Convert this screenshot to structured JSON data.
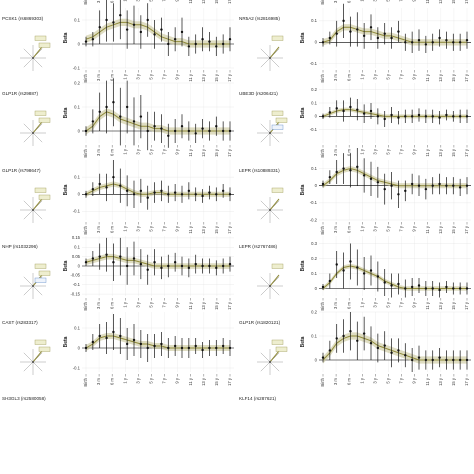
{
  "colors": {
    "band": "#c9c79a",
    "trend": "#8f8a3a",
    "point": "#111111",
    "zero": "#000000",
    "grid": "#dddddd",
    "compass": "#999999",
    "tag_fill": "#eeeecf",
    "tag_edge": "#9c9a55",
    "tag_blue": "#5a87c7"
  },
  "x_ticks": [
    "Birth",
    "3 m",
    "6 m",
    "1 y",
    "3 y",
    "5 y",
    "7 y",
    "9 y",
    "11 y",
    "13 y",
    "15 y",
    "17 y"
  ],
  "y_label": "Beta",
  "chart_data": [
    {
      "type": "line",
      "title": "PCSK1 (rs6869303)",
      "x": [
        0,
        1,
        2,
        3,
        4,
        5,
        6,
        7,
        8,
        9,
        10,
        11,
        12,
        13,
        14,
        15,
        16,
        17,
        18,
        19,
        20,
        21
      ],
      "trend": [
        0.02,
        0.03,
        0.05,
        0.07,
        0.08,
        0.09,
        0.09,
        0.08,
        0.08,
        0.07,
        0.05,
        0.03,
        0.02,
        0.01,
        0.01,
        0.0,
        0.0,
        0.0,
        0.0,
        0.0,
        0.0,
        0.0
      ],
      "points": [
        0.01,
        0.02,
        0.07,
        0.1,
        0.09,
        0.12,
        0.06,
        0.08,
        0.05,
        0.1,
        0.04,
        0.06,
        0.0,
        0.02,
        0.05,
        -0.01,
        0.0,
        0.02,
        0.01,
        -0.01,
        0.0,
        0.02
      ],
      "err": [
        0.02,
        0.03,
        0.07,
        0.09,
        0.08,
        0.1,
        0.08,
        0.08,
        0.07,
        0.07,
        0.06,
        0.05,
        0.05,
        0.05,
        0.06,
        0.04,
        0.04,
        0.05,
        0.04,
        0.04,
        0.04,
        0.05
      ],
      "ylim": [
        -0.1,
        0.15
      ],
      "yticks": [
        0.1,
        0,
        -0.1
      ],
      "ytick_labels": [
        "0.1",
        "0",
        "-0.1"
      ],
      "tags": 2
    },
    {
      "type": "line",
      "title": "NR5A2 (rs2816985)",
      "x": [
        0,
        1,
        2,
        3,
        4,
        5,
        6,
        7,
        8,
        9,
        10,
        11,
        12,
        13,
        14,
        15,
        16,
        17,
        18,
        19,
        20,
        21
      ],
      "trend": [
        0.0,
        0.01,
        0.05,
        0.07,
        0.07,
        0.06,
        0.05,
        0.05,
        0.04,
        0.03,
        0.03,
        0.02,
        0.01,
        0.0,
        0.0,
        0.0,
        0.0,
        0.0,
        0.0,
        0.0,
        0.0,
        0.0
      ],
      "points": [
        0.0,
        0.02,
        0.04,
        0.1,
        0.05,
        0.06,
        0.03,
        0.07,
        0.02,
        0.04,
        0.02,
        0.05,
        0.0,
        0.0,
        0.01,
        -0.01,
        0.0,
        0.02,
        0.01,
        0.0,
        0.0,
        0.01
      ],
      "err": [
        0.02,
        0.03,
        0.06,
        0.08,
        0.07,
        0.08,
        0.06,
        0.06,
        0.05,
        0.05,
        0.05,
        0.05,
        0.04,
        0.05,
        0.05,
        0.04,
        0.04,
        0.04,
        0.04,
        0.04,
        0.04,
        0.04
      ],
      "ylim": [
        -0.12,
        0.16
      ],
      "yticks": [
        0.1,
        0,
        -0.1
      ],
      "ytick_labels": [
        "0.1",
        "0",
        "-0.1"
      ],
      "tags": 1
    },
    {
      "type": "line",
      "title": "GLP1R (rs29887)",
      "x": [
        0,
        1,
        2,
        3,
        4,
        5,
        6,
        7,
        8,
        9,
        10,
        11,
        12,
        13,
        14,
        15,
        16,
        17,
        18,
        19,
        20,
        21
      ],
      "trend": [
        0.0,
        0.02,
        0.06,
        0.08,
        0.07,
        0.05,
        0.04,
        0.03,
        0.02,
        0.02,
        0.01,
        0.01,
        0.0,
        0.0,
        0.0,
        0.0,
        0.0,
        0.0,
        0.0,
        0.0,
        0.0,
        0.0
      ],
      "points": [
        0.0,
        0.04,
        0.08,
        0.1,
        0.12,
        0.06,
        0.1,
        0.04,
        0.06,
        0.0,
        0.02,
        0.01,
        -0.02,
        0.0,
        0.02,
        0.0,
        -0.01,
        0.01,
        0.0,
        0.02,
        0.0,
        0.0
      ],
      "err": [
        0.02,
        0.05,
        0.08,
        0.11,
        0.1,
        0.12,
        0.11,
        0.1,
        0.09,
        0.08,
        0.06,
        0.06,
        0.05,
        0.05,
        0.05,
        0.04,
        0.04,
        0.04,
        0.04,
        0.04,
        0.04,
        0.04
      ],
      "ylim": [
        -0.05,
        0.2
      ],
      "yticks": [
        0.2,
        0.1,
        0
      ],
      "ytick_labels": [
        "0.2",
        "0.1",
        "0"
      ],
      "tags": 2
    },
    {
      "type": "line",
      "title": "UBE3D (rs206421)",
      "x": [
        0,
        1,
        2,
        3,
        4,
        5,
        6,
        7,
        8,
        9,
        10,
        11,
        12,
        13,
        14,
        15,
        16,
        17,
        18,
        19,
        20,
        21
      ],
      "trend": [
        0.0,
        0.02,
        0.04,
        0.05,
        0.05,
        0.04,
        0.03,
        0.02,
        0.01,
        0.0,
        0.0,
        0.0,
        0.0,
        0.0,
        0.0,
        0.0,
        0.0,
        0.0,
        0.0,
        0.0,
        0.0,
        0.0
      ],
      "points": [
        0.0,
        0.03,
        0.06,
        0.04,
        0.07,
        0.05,
        0.02,
        0.04,
        0.0,
        -0.02,
        0.01,
        -0.01,
        0.0,
        0.0,
        0.01,
        0.0,
        0.0,
        -0.01,
        0.01,
        0.0,
        0.0,
        0.0
      ],
      "err": [
        0.02,
        0.04,
        0.06,
        0.08,
        0.07,
        0.08,
        0.07,
        0.06,
        0.06,
        0.06,
        0.06,
        0.05,
        0.05,
        0.05,
        0.05,
        0.05,
        0.05,
        0.05,
        0.04,
        0.04,
        0.05,
        0.05
      ],
      "ylim": [
        -0.2,
        0.25
      ],
      "yticks": [
        0.2,
        0.1,
        0,
        -0.1
      ],
      "ytick_labels": [
        "0.2",
        "0.1",
        "0",
        "-0.1"
      ],
      "tags": 3
    },
    {
      "type": "line",
      "title": "GLP1R (rs798647)",
      "x": [
        0,
        1,
        2,
        3,
        4,
        5,
        6,
        7,
        8,
        9,
        10,
        11,
        12,
        13,
        14,
        15,
        16,
        17,
        18,
        19,
        20,
        21
      ],
      "trend": [
        0.0,
        0.02,
        0.04,
        0.05,
        0.06,
        0.05,
        0.03,
        0.01,
        0.0,
        0.0,
        0.01,
        0.01,
        0.0,
        0.0,
        0.0,
        0.0,
        0.0,
        0.0,
        0.0,
        0.0,
        0.0,
        0.0
      ],
      "points": [
        0.0,
        0.03,
        0.06,
        0.04,
        0.1,
        0.05,
        0.02,
        0.0,
        0.02,
        -0.02,
        0.01,
        0.02,
        0.0,
        0.01,
        0.0,
        0.02,
        0.0,
        -0.01,
        0.01,
        0.0,
        0.02,
        0.0
      ],
      "err": [
        0.02,
        0.04,
        0.06,
        0.08,
        0.1,
        0.1,
        0.09,
        0.08,
        0.07,
        0.07,
        0.06,
        0.06,
        0.05,
        0.05,
        0.05,
        0.05,
        0.04,
        0.04,
        0.04,
        0.04,
        0.04,
        0.04
      ],
      "ylim": [
        -0.15,
        0.2
      ],
      "yticks": [
        0.1,
        0,
        -0.1
      ],
      "ytick_labels": [
        "0.1",
        "0",
        "-0.1"
      ],
      "tags": 2
    },
    {
      "type": "line",
      "title": "LEPR (rs10889331)",
      "x": [
        0,
        1,
        2,
        3,
        4,
        5,
        6,
        7,
        8,
        9,
        10,
        11,
        12,
        13,
        14,
        15,
        16,
        17,
        18,
        19,
        20,
        21
      ],
      "trend": [
        0.0,
        0.03,
        0.07,
        0.09,
        0.1,
        0.09,
        0.07,
        0.05,
        0.03,
        0.02,
        0.01,
        0.0,
        0.0,
        0.0,
        0.0,
        0.0,
        0.0,
        0.0,
        0.0,
        0.0,
        0.0,
        0.0
      ],
      "points": [
        0.01,
        0.05,
        0.08,
        0.1,
        0.09,
        0.11,
        0.06,
        0.04,
        0.02,
        -0.02,
        0.0,
        -0.05,
        -0.03,
        0.01,
        0.0,
        -0.02,
        0.0,
        0.01,
        0.0,
        0.0,
        -0.01,
        0.0
      ],
      "err": [
        0.02,
        0.04,
        0.07,
        0.09,
        0.1,
        0.11,
        0.1,
        0.1,
        0.09,
        0.09,
        0.08,
        0.08,
        0.06,
        0.06,
        0.06,
        0.06,
        0.05,
        0.06,
        0.05,
        0.05,
        0.05,
        0.05
      ],
      "ylim": [
        -0.2,
        0.15
      ],
      "yticks": [
        0.1,
        0,
        -0.1,
        -0.2
      ],
      "ytick_labels": [
        "0.1",
        "0",
        "-0.1",
        "-0.2"
      ],
      "tags": 1
    },
    {
      "type": "line",
      "title": "NHP (rs1032296)",
      "x": [
        0,
        1,
        2,
        3,
        4,
        5,
        6,
        7,
        8,
        9,
        10,
        11,
        12,
        13,
        14,
        15,
        16,
        17,
        18,
        19,
        20,
        21
      ],
      "trend": [
        0.02,
        0.03,
        0.04,
        0.05,
        0.05,
        0.04,
        0.03,
        0.03,
        0.02,
        0.01,
        0.0,
        0.0,
        0.0,
        0.0,
        0.0,
        0.0,
        0.0,
        0.0,
        0.0,
        0.0,
        0.0,
        0.0
      ],
      "points": [
        0.02,
        0.04,
        0.05,
        0.06,
        0.02,
        0.05,
        0.0,
        0.04,
        0.01,
        -0.02,
        0.02,
        -0.01,
        0.0,
        0.02,
        0.0,
        -0.01,
        0.01,
        0.0,
        0.0,
        -0.01,
        0.0,
        0.01
      ],
      "err": [
        0.02,
        0.04,
        0.07,
        0.09,
        0.1,
        0.1,
        0.1,
        0.09,
        0.08,
        0.08,
        0.07,
        0.06,
        0.06,
        0.05,
        0.05,
        0.05,
        0.05,
        0.04,
        0.04,
        0.04,
        0.04,
        0.04
      ],
      "ylim": [
        -0.16,
        0.16
      ],
      "yticks": [
        0.15,
        0.1,
        0.05,
        0,
        -0.05,
        -0.1,
        -0.15
      ],
      "ytick_labels": [
        "0.15",
        "0.1",
        "0.05",
        "0",
        "-0.05",
        "-0.1",
        "-0.15"
      ],
      "tags": 3
    },
    {
      "type": "line",
      "title": "LEPR (rs2767486)",
      "x": [
        0,
        1,
        2,
        3,
        4,
        5,
        6,
        7,
        8,
        9,
        10,
        11,
        12,
        13,
        14,
        15,
        16,
        17,
        18,
        19,
        20,
        21
      ],
      "trend": [
        0.0,
        0.04,
        0.1,
        0.14,
        0.15,
        0.14,
        0.12,
        0.1,
        0.08,
        0.05,
        0.03,
        0.01,
        0.0,
        0.0,
        0.0,
        0.0,
        0.0,
        0.0,
        0.0,
        0.0,
        0.0,
        0.0
      ],
      "points": [
        0.01,
        0.05,
        0.16,
        0.12,
        0.18,
        0.14,
        0.1,
        0.12,
        0.08,
        0.04,
        0.02,
        0.03,
        0.0,
        0.01,
        0.02,
        0.0,
        0.0,
        -0.01,
        0.01,
        0.0,
        0.0,
        0.0
      ],
      "err": [
        0.02,
        0.05,
        0.09,
        0.12,
        0.12,
        0.12,
        0.11,
        0.1,
        0.1,
        0.09,
        0.08,
        0.07,
        0.06,
        0.06,
        0.05,
        0.05,
        0.05,
        0.05,
        0.04,
        0.04,
        0.04,
        0.04
      ],
      "ylim": [
        -0.05,
        0.35
      ],
      "yticks": [
        0.3,
        0.2,
        0.1,
        0
      ],
      "ytick_labels": [
        "0.3",
        "0.2",
        "0.1",
        "0"
      ],
      "tags": 1
    },
    {
      "type": "line",
      "title": "CAST (rs283317)",
      "x": [
        0,
        1,
        2,
        3,
        4,
        5,
        6,
        7,
        8,
        9,
        10,
        11,
        12,
        13,
        14,
        15,
        16,
        17,
        18,
        19,
        20,
        21
      ],
      "trend": [
        0.0,
        0.02,
        0.05,
        0.06,
        0.06,
        0.05,
        0.04,
        0.03,
        0.02,
        0.02,
        0.01,
        0.01,
        0.0,
        0.0,
        0.0,
        0.0,
        0.0,
        0.0,
        0.0,
        0.0,
        0.0,
        0.0
      ],
      "points": [
        0.0,
        0.03,
        0.06,
        0.05,
        0.08,
        0.06,
        0.02,
        0.04,
        0.02,
        0.0,
        0.01,
        0.02,
        0.0,
        0.01,
        0.0,
        0.0,
        0.01,
        -0.01,
        0.0,
        0.0,
        0.01,
        0.0
      ],
      "err": [
        0.02,
        0.04,
        0.06,
        0.08,
        0.09,
        0.09,
        0.08,
        0.08,
        0.07,
        0.07,
        0.06,
        0.06,
        0.05,
        0.05,
        0.05,
        0.05,
        0.04,
        0.04,
        0.04,
        0.04,
        0.04,
        0.04
      ],
      "ylim": [
        -0.12,
        0.18
      ],
      "yticks": [
        0.1,
        0,
        -0.1
      ],
      "ytick_labels": [
        "0.1",
        "0",
        "-0.1"
      ],
      "tags": 2
    },
    {
      "type": "line",
      "title": "GLP1R (rs1820121)",
      "x": [
        0,
        1,
        2,
        3,
        4,
        5,
        6,
        7,
        8,
        9,
        10,
        11,
        12,
        13,
        14,
        15,
        16,
        17,
        18,
        19,
        20,
        21
      ],
      "trend": [
        0.0,
        0.03,
        0.07,
        0.09,
        0.1,
        0.1,
        0.09,
        0.08,
        0.06,
        0.05,
        0.04,
        0.03,
        0.02,
        0.01,
        0.0,
        0.0,
        0.0,
        0.0,
        0.0,
        0.0,
        0.0,
        0.0
      ],
      "points": [
        0.01,
        0.04,
        0.09,
        0.1,
        0.12,
        0.08,
        0.11,
        0.07,
        0.05,
        0.06,
        0.03,
        0.04,
        0.02,
        0.0,
        0.01,
        0.0,
        0.0,
        0.01,
        0.0,
        0.0,
        0.0,
        0.0
      ],
      "err": [
        0.02,
        0.04,
        0.06,
        0.07,
        0.08,
        0.08,
        0.07,
        0.07,
        0.06,
        0.06,
        0.06,
        0.05,
        0.05,
        0.05,
        0.05,
        0.04,
        0.04,
        0.04,
        0.04,
        0.04,
        0.04,
        0.04
      ],
      "ylim": [
        -0.05,
        0.2
      ],
      "yticks": [
        0.2,
        0.1,
        0
      ],
      "ytick_labels": [
        "0.2",
        "0.1",
        "0"
      ],
      "tags": 2
    },
    {
      "type": "line",
      "title": "SH3GL3 (rs2580058)",
      "x": [
        0,
        1,
        2,
        3,
        4,
        5,
        6,
        7,
        8,
        9,
        10,
        11,
        12,
        13,
        14,
        15,
        16,
        17,
        18,
        19,
        20,
        21
      ],
      "trend": [],
      "points": [],
      "err": [],
      "ylim": [
        0,
        0.2
      ],
      "yticks": [],
      "ytick_labels": [],
      "tags": 0,
      "partial": true
    },
    {
      "type": "line",
      "title": "KLF14 (rs287621)",
      "x": [
        0,
        1,
        2,
        3,
        4,
        5,
        6,
        7,
        8,
        9,
        10,
        11,
        12,
        13,
        14,
        15,
        16,
        17,
        18,
        19,
        20,
        21
      ],
      "trend": [],
      "points": [],
      "err": [],
      "ylim": [
        0,
        0.2
      ],
      "yticks": [],
      "ytick_labels": [],
      "tags": 0,
      "partial": true
    }
  ]
}
